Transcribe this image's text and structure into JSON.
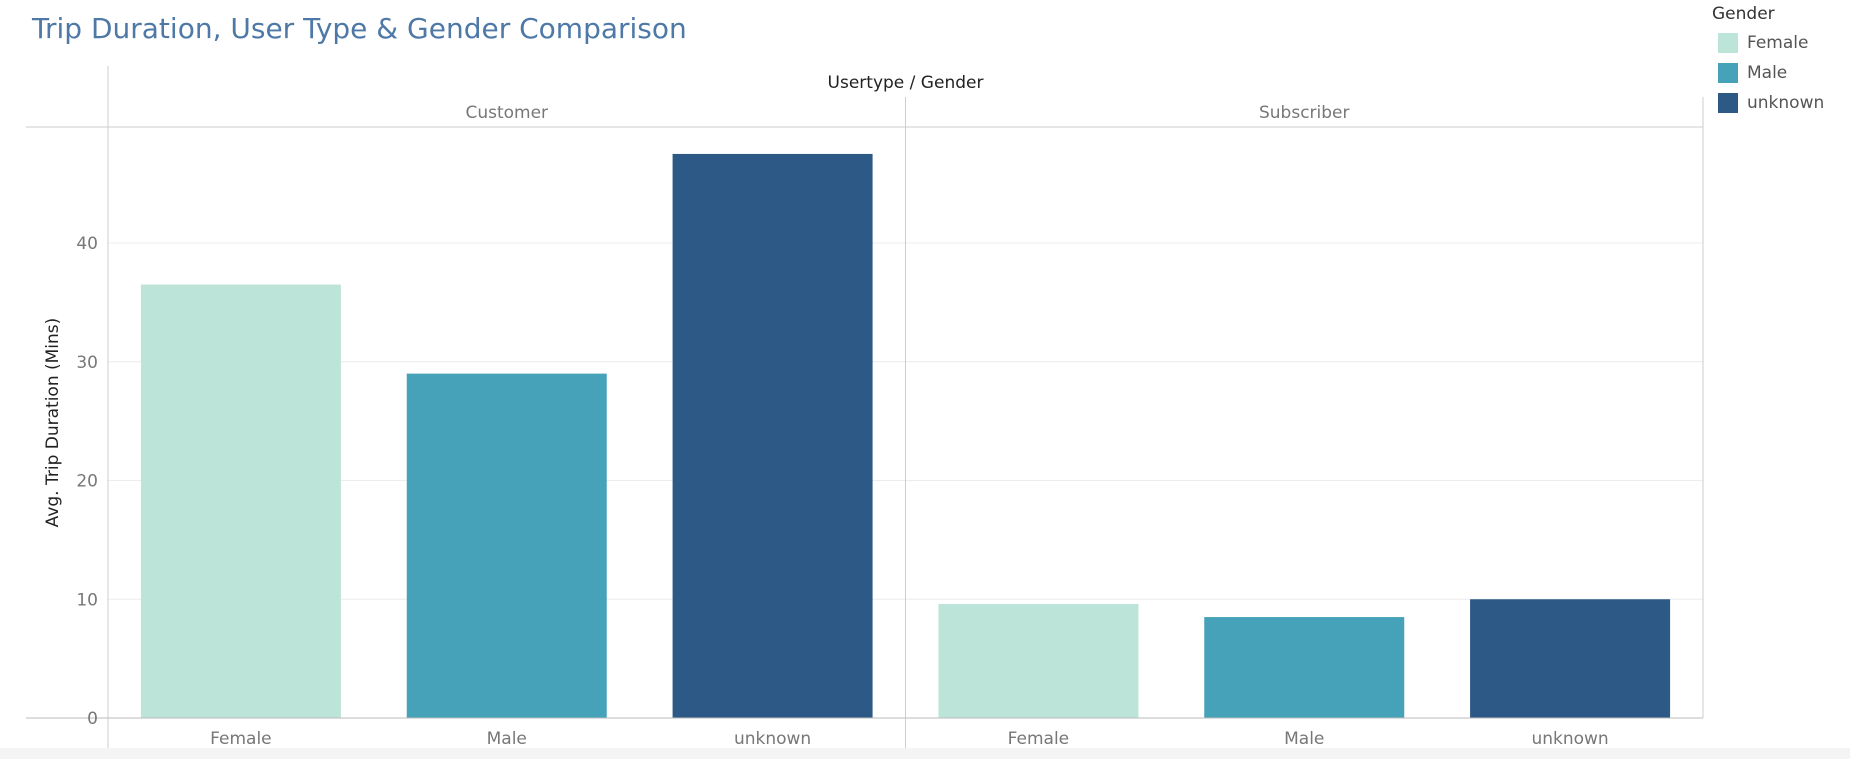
{
  "title": "Trip Duration, User Type & Gender Comparison",
  "legend": {
    "title": "Gender",
    "items": [
      {
        "label": "Female",
        "color": "#bce4d8"
      },
      {
        "label": "Male",
        "color": "#45a2b9"
      },
      {
        "label": "unknown",
        "color": "#2c5985"
      }
    ]
  },
  "chart_data": {
    "type": "bar",
    "title": "Trip Duration, User Type & Gender Comparison",
    "column_header_title": "Usertype / Gender",
    "ylabel": "Avg. Trip Duration (Mins)",
    "ylim": [
      0,
      50
    ],
    "yticks": [
      0,
      10,
      20,
      30,
      40
    ],
    "grid": true,
    "legend_position": "top-right",
    "panels": [
      {
        "name": "Customer",
        "categories": [
          "Female",
          "Male",
          "unknown"
        ],
        "values": [
          36.5,
          29.0,
          47.5
        ],
        "colors": [
          "#bce4d8",
          "#45a2b9",
          "#2c5985"
        ]
      },
      {
        "name": "Subscriber",
        "categories": [
          "Female",
          "Male",
          "unknown"
        ],
        "values": [
          9.6,
          8.5,
          10.0
        ],
        "colors": [
          "#bce4d8",
          "#45a2b9",
          "#2c5985"
        ]
      }
    ]
  }
}
